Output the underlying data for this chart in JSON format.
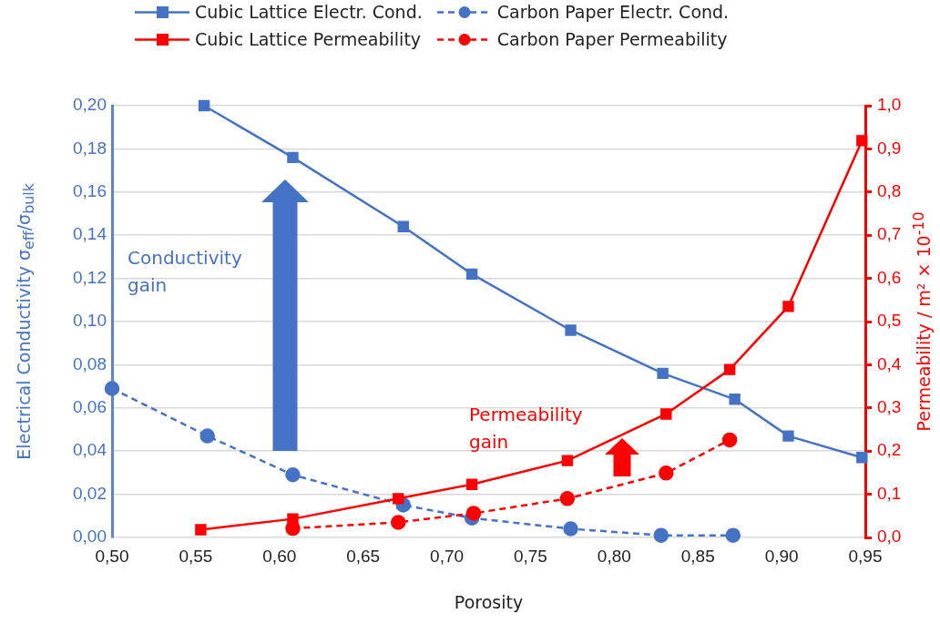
{
  "chart_data": {
    "type": "line",
    "xlabel": "Porosity",
    "ylabel": "Electrical Conductivity σ$_{eff}$/σ$_{bulk}$",
    "y2label": "Permeability / m² × 10$^{-10}$",
    "xlim": [
      0.5,
      0.95
    ],
    "xticks": [
      {
        "value": 0.5,
        "label": "0,50"
      },
      {
        "value": 0.55,
        "label": "0,55"
      },
      {
        "value": 0.6,
        "label": "0,60"
      },
      {
        "value": 0.65,
        "label": "0,65"
      },
      {
        "value": 0.7,
        "label": "0,70"
      },
      {
        "value": 0.75,
        "label": "0,75"
      },
      {
        "value": 0.8,
        "label": "0,80"
      },
      {
        "value": 0.85,
        "label": "0,85"
      },
      {
        "value": 0.9,
        "label": "0,90"
      },
      {
        "value": 0.95,
        "label": "0,95"
      }
    ],
    "ylim": [
      0,
      0.2
    ],
    "yticks": [
      {
        "value": 0,
        "label": "0,00"
      },
      {
        "value": 0.02,
        "label": "0,02"
      },
      {
        "value": 0.04,
        "label": "0,04"
      },
      {
        "value": 0.06,
        "label": "0,06"
      },
      {
        "value": 0.08,
        "label": "0,08"
      },
      {
        "value": 0.1,
        "label": "0,10"
      },
      {
        "value": 0.12,
        "label": "0,12"
      },
      {
        "value": 0.14,
        "label": "0,14"
      },
      {
        "value": 0.16,
        "label": "0,16"
      },
      {
        "value": 0.18,
        "label": "0,18"
      },
      {
        "value": 0.2,
        "label": "0,20"
      }
    ],
    "y2lim": [
      0,
      1
    ],
    "y2ticks": [
      {
        "value": 0,
        "label": "0,0"
      },
      {
        "value": 0.1,
        "label": "0,1"
      },
      {
        "value": 0.2,
        "label": "0,2"
      },
      {
        "value": 0.3,
        "label": "0,3"
      },
      {
        "value": 0.4,
        "label": "0,4"
      },
      {
        "value": 0.5,
        "label": "0,5"
      },
      {
        "value": 0.6,
        "label": "0,6"
      },
      {
        "value": 0.7,
        "label": "0,7"
      },
      {
        "value": 0.8,
        "label": "0,8"
      },
      {
        "value": 0.9,
        "label": "0,9"
      },
      {
        "value": 1,
        "label": "1,0"
      }
    ],
    "grid": "y",
    "legend": "top",
    "series": [
      {
        "name": "Cubic Lattice Electr. Cond.",
        "color": "#4472c4",
        "marker": "square",
        "line_style": "solid",
        "x": [
          0.555,
          0.608,
          0.674,
          0.715,
          0.774,
          0.829,
          0.872,
          0.904,
          0.948
        ],
        "values": [
          0.2,
          0.176,
          0.144,
          0.122,
          0.096,
          0.076,
          0.064,
          0.047,
          0.037
        ]
      },
      {
        "name": "Carbon Paper Electr. Cond.",
        "color": "#4472c4",
        "marker": "circle",
        "line_style": "dashed",
        "x": [
          0.5,
          0.557,
          0.608,
          0.674,
          0.715,
          0.774,
          0.828,
          0.871
        ],
        "values": [
          0.069,
          0.047,
          0.029,
          0.015,
          0.009,
          0.004,
          0.001,
          0.001
        ]
      },
      {
        "name": "Cubic Lattice Permeability",
        "color": "#ff0000",
        "marker": "square",
        "line_style": "solid",
        "axis": "y2",
        "x": [
          0.553,
          0.608,
          0.671,
          0.715,
          0.772,
          0.831,
          0.869,
          0.904,
          0.948
        ],
        "values": [
          0.018,
          0.043,
          0.09,
          0.123,
          0.178,
          0.286,
          0.389,
          0.535,
          0.919
        ]
      },
      {
        "name": "Carbon Paper Permeability",
        "color": "#ff0000",
        "marker": "circle",
        "line_style": "dashed",
        "axis": "y2",
        "x": [
          0.608,
          0.671,
          0.716,
          0.772,
          0.831,
          0.869
        ],
        "values": [
          0.021,
          0.035,
          0.056,
          0.09,
          0.149,
          0.226
        ]
      }
    ],
    "annotations": [
      "Conductivity gain",
      "Permeability gain"
    ]
  }
}
